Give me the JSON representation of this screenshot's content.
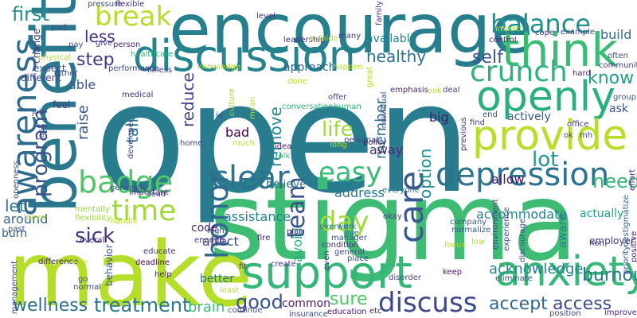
{
  "words": [
    {
      "text": "open",
      "color": "#297b8e",
      "vertical": false
    },
    {
      "text": "stigma",
      "color": "#3fbc73",
      "vertical": false
    },
    {
      "text": "make",
      "color": "#b5de2b",
      "vertical": false
    },
    {
      "text": "encourage",
      "color": "#277f8e",
      "vertical": false
    },
    {
      "text": "benefit",
      "color": "#2a788e",
      "vertical": true
    },
    {
      "text": "discussion",
      "color": "#25838e",
      "vertical": false
    },
    {
      "text": "think",
      "color": "#3bbb75",
      "vertical": false
    },
    {
      "text": "openly",
      "color": "#2ab07f",
      "vertical": false
    },
    {
      "text": "provide",
      "color": "#b8de29",
      "vertical": false
    },
    {
      "text": "support",
      "color": "#35b779",
      "vertical": false
    },
    {
      "text": "anxiety",
      "color": "#37b878",
      "vertical": false
    },
    {
      "text": "depression",
      "color": "#2c728e",
      "vertical": false
    },
    {
      "text": "clear",
      "color": "#2c718e",
      "vertical": false
    },
    {
      "text": "awareness",
      "color": "#2f6b8e",
      "vertical": true
    },
    {
      "text": "care",
      "color": "#38598c",
      "vertical": true
    },
    {
      "text": "honor",
      "color": "#31688e",
      "vertical": true
    },
    {
      "text": "badge",
      "color": "#52c569",
      "vertical": false
    },
    {
      "text": "crunch",
      "color": "#2db27d",
      "vertical": false
    },
    {
      "text": "balance",
      "color": "#20928c",
      "vertical": false
    },
    {
      "text": "break",
      "color": "#b5de2b",
      "vertical": false
    },
    {
      "text": "discuss",
      "color": "#3e4a89",
      "vertical": false
    },
    {
      "text": "easy",
      "color": "#3bbb75",
      "vertical": false
    },
    {
      "text": "time",
      "color": "#9fda3a",
      "vertical": false
    },
    {
      "text": "day",
      "color": "#a2da37",
      "vertical": false
    },
    {
      "text": "team",
      "color": "#3a548c",
      "vertical": true
    },
    {
      "text": "first",
      "color": "#21908d",
      "vertical": false
    },
    {
      "text": "program",
      "color": "#3b528b",
      "vertical": true
    },
    {
      "text": "sick",
      "color": "#453882",
      "vertical": false
    },
    {
      "text": "treatment",
      "color": "#2a788e",
      "vertical": false
    },
    {
      "text": "wellness",
      "color": "#2e6f8e",
      "vertical": false
    },
    {
      "text": "good",
      "color": "#3b528b",
      "vertical": false
    },
    {
      "text": "sure",
      "color": "#52c569",
      "vertical": false
    },
    {
      "text": "accept",
      "color": "#31688e",
      "vertical": false
    },
    {
      "text": "access",
      "color": "#3e4c8a",
      "vertical": false
    },
    {
      "text": "burnout",
      "color": "#2a788e",
      "vertical": false
    },
    {
      "text": "acknowledge",
      "color": "#26828e",
      "vertical": false
    },
    {
      "text": "need",
      "color": "#37b878",
      "vertical": false
    },
    {
      "text": "know",
      "color": "#1f9f88",
      "vertical": false
    },
    {
      "text": "life",
      "color": "#a0da39",
      "vertical": false
    },
    {
      "text": "lot",
      "color": "#1f988b",
      "vertical": false
    },
    {
      "text": "self",
      "color": "#3b528b",
      "vertical": false
    },
    {
      "text": "healthy",
      "color": "#2c728e",
      "vertical": false
    },
    {
      "text": "step",
      "color": "#453882",
      "vertical": false
    },
    {
      "text": "less",
      "color": "#46327e",
      "vertical": false
    },
    {
      "text": "talk",
      "color": "#2c728e",
      "vertical": true
    },
    {
      "text": "reduce",
      "color": "#414487",
      "vertical": true
    },
    {
      "text": "remove",
      "color": "#24868e",
      "vertical": true
    },
    {
      "text": "option",
      "color": "#23898e",
      "vertical": true
    },
    {
      "text": "member",
      "color": "#2c728e",
      "vertical": true
    },
    {
      "text": "raise",
      "color": "#3b528b",
      "vertical": true
    },
    {
      "text": "let",
      "color": "#2e6e8e",
      "vertical": false
    },
    {
      "text": "brain",
      "color": "#38b977",
      "vertical": false
    },
    {
      "text": "assistance",
      "color": "#277f8e",
      "vertical": false
    },
    {
      "text": "accommodate",
      "color": "#25848e",
      "vertical": false
    },
    {
      "text": "provide",
      "color": "#b8de29",
      "vertical": false
    },
    {
      "text": "bad",
      "color": "#440154",
      "vertical": false
    },
    {
      "text": "believe",
      "color": "#2b758e",
      "vertical": false
    },
    {
      "text": "affect",
      "color": "#404688",
      "vertical": false
    },
    {
      "text": "address",
      "color": "#2a788e",
      "vertical": false
    },
    {
      "text": "allow",
      "color": "#471063",
      "vertical": false
    },
    {
      "text": "actually",
      "color": "#1fa088",
      "vertical": false
    },
    {
      "text": "away",
      "color": "#472d7b",
      "vertical": false
    },
    {
      "text": "around",
      "color": "#33638d",
      "vertical": false
    },
    {
      "text": "burn",
      "color": "#35608d",
      "vertical": false
    },
    {
      "text": "code",
      "color": "#482878",
      "vertical": false
    },
    {
      "text": "better",
      "color": "#2e6e8e",
      "vertical": false
    },
    {
      "text": "common",
      "color": "#482071",
      "vertical": false
    },
    {
      "text": "available",
      "color": "#25858e",
      "vertical": false
    },
    {
      "text": "approach",
      "color": "#31688e",
      "vertical": false
    },
    {
      "text": "big",
      "color": "#481d6f",
      "vertical": false
    },
    {
      "text": "ask",
      "color": "#3b528b",
      "vertical": false
    },
    {
      "text": "actively",
      "color": "#35608d",
      "vertical": false
    },
    {
      "text": "build",
      "color": "#31688e",
      "vertical": false
    },
    {
      "text": "able",
      "color": "#38598c",
      "vertical": false
    },
    {
      "text": "avoid",
      "color": "#2ab07f",
      "vertical": true
    },
    {
      "text": "aware",
      "color": "#2a788e",
      "vertical": true
    },
    {
      "text": "employer",
      "color": "#46337f",
      "vertical": false
    },
    {
      "text": "change",
      "color": "#443b84",
      "vertical": true
    },
    {
      "text": "feel",
      "color": "#443b84",
      "vertical": false
    },
    {
      "text": "expect",
      "color": "#3b528b",
      "vertical": false
    },
    {
      "text": "different",
      "color": "#3e4989",
      "vertical": false
    },
    {
      "text": "sure",
      "color": "#52c569",
      "vertical": false
    },
    {
      "text": "fire",
      "color": "#482475",
      "vertical": false
    },
    {
      "text": "enough",
      "color": "#46337f",
      "vertical": false
    },
    {
      "text": "overall",
      "color": "#482878",
      "vertical": false
    },
    {
      "text": "create",
      "color": "#443983",
      "vertical": false
    },
    {
      "text": "condition",
      "color": "#472d7b",
      "vertical": false
    },
    {
      "text": "education",
      "color": "#481a6c",
      "vertical": false
    },
    {
      "text": "continue",
      "color": "#3e4a89",
      "vertical": false
    },
    {
      "text": "disorder",
      "color": "#3f4788",
      "vertical": false
    },
    {
      "text": "difference",
      "color": "#482878",
      "vertical": false
    },
    {
      "text": "deadline",
      "color": "#440154",
      "vertical": false
    },
    {
      "text": "behavior",
      "color": "#3a548c",
      "vertical": true
    },
    {
      "text": "educate",
      "color": "#472f7d",
      "vertical": false
    },
    {
      "text": "environment",
      "color": "#433e85",
      "vertical": true
    },
    {
      "text": "experience",
      "color": "#3e4a89",
      "vertical": true
    },
    {
      "text": "discourage",
      "color": "#3d4d8a",
      "vertical": true
    },
    {
      "text": "destigmatize",
      "color": "#31688e",
      "vertical": true
    },
    {
      "text": "cope",
      "color": "#443983",
      "vertical": false
    },
    {
      "text": "example",
      "color": "#3f4889",
      "vertical": false
    },
    {
      "text": "healthcare",
      "color": "#2fb47c",
      "vertical": false
    },
    {
      "text": "leadership",
      "color": "#46327e",
      "vertical": false
    },
    {
      "text": "control",
      "color": "#482173",
      "vertical": false
    },
    {
      "text": "conversation",
      "color": "#2fb47c",
      "vertical": false
    },
    {
      "text": "emphasis",
      "color": "#482576",
      "vertical": false
    },
    {
      "text": "deal",
      "color": "#3f4889",
      "vertical": false
    },
    {
      "text": "community",
      "color": "#433d84",
      "vertical": false
    },
    {
      "text": "end",
      "color": "#3b528b",
      "vertical": false
    },
    {
      "text": "find",
      "color": "#453781",
      "vertical": false
    },
    {
      "text": "everyone",
      "color": "#277f8e",
      "vertical": false
    },
    {
      "text": "okay",
      "color": "#414287",
      "vertical": false
    },
    {
      "text": "company",
      "color": "#3a548c",
      "vertical": false
    },
    {
      "text": "normalize",
      "color": "#3a548c",
      "vertical": false
    },
    {
      "text": "manager",
      "color": "#3b528b",
      "vertical": false
    },
    {
      "text": "focus",
      "color": "#bddf26",
      "vertical": false
    },
    {
      "text": "even",
      "color": "#443b84",
      "vertical": true
    },
    {
      "text": "keep",
      "color": "#481467",
      "vertical": false
    },
    {
      "text": "eliminate",
      "color": "#3b518b",
      "vertical": false
    },
    {
      "text": "improve",
      "color": "#482878",
      "vertical": false
    },
    {
      "text": "help",
      "color": "#482677",
      "vertical": false
    },
    {
      "text": "normal",
      "color": "#3e4c8a",
      "vertical": false
    },
    {
      "text": "go",
      "color": "#3b528b",
      "vertical": false
    },
    {
      "text": "lead",
      "color": "#45337f",
      "vertical": false
    },
    {
      "text": "handle",
      "color": "#b8de29",
      "vertical": false
    },
    {
      "text": "mentally",
      "color": "#95d840",
      "vertical": false
    },
    {
      "text": "flexibility",
      "color": "#a5db36",
      "vertical": false
    },
    {
      "text": "leave",
      "color": "#b5de2b",
      "vertical": false
    },
    {
      "text": "generally",
      "color": "#3e4a89",
      "vertical": false
    },
    {
      "text": "important",
      "color": "#453882",
      "vertical": false
    },
    {
      "text": "developer",
      "color": "#3e4989",
      "vertical": true
    },
    {
      "text": "medical",
      "color": "#46307e",
      "vertical": false
    },
    {
      "text": "culture",
      "color": "#a2da37",
      "vertical": true
    },
    {
      "text": "human",
      "color": "#2fb47c",
      "vertical": false
    },
    {
      "text": "offer",
      "color": "#433e85",
      "vertical": false
    },
    {
      "text": "individual",
      "color": "#3e4989",
      "vertical": true
    },
    {
      "text": "personal",
      "color": "#404688",
      "vertical": false
    },
    {
      "text": "policy",
      "color": "#471365",
      "vertical": false
    },
    {
      "text": "idea",
      "color": "#481668",
      "vertical": false
    },
    {
      "text": "folk",
      "color": "#3bbb75",
      "vertical": false
    },
    {
      "text": "much",
      "color": "#b5de2b",
      "vertical": false
    },
    {
      "text": "home",
      "color": "#3e4989",
      "vertical": false
    },
    {
      "text": "high",
      "color": "#3b528b",
      "vertical": false
    },
    {
      "text": "plan",
      "color": "#472d7b",
      "vertical": false
    },
    {
      "text": "live",
      "color": "#2e6e8e",
      "vertical": false
    },
    {
      "text": "overwork",
      "color": "#2e6e8e",
      "vertical": false
    },
    {
      "text": "general",
      "color": "#3e4c8a",
      "vertical": false
    },
    {
      "text": "place",
      "color": "#3b528b",
      "vertical": false
    },
    {
      "text": "etc",
      "color": "#481b6d",
      "vertical": false
    },
    {
      "text": "insurance",
      "color": "#3e4989",
      "vertical": false
    },
    {
      "text": "position",
      "color": "#3e4a89",
      "vertical": false
    },
    {
      "text": "priority",
      "color": "#3b528b",
      "vertical": true
    },
    {
      "text": "positive",
      "color": "#482071",
      "vertical": true
    },
    {
      "text": "non",
      "color": "#453781",
      "vertical": false
    },
    {
      "text": "office",
      "color": "#453781",
      "vertical": false
    },
    {
      "text": "group",
      "color": "#38598c",
      "vertical": false
    },
    {
      "text": "hard",
      "color": "#481f70",
      "vertical": false
    },
    {
      "text": "often",
      "color": "#3e4c8a",
      "vertical": false
    },
    {
      "text": "impact",
      "color": "#b8de29",
      "vertical": false
    },
    {
      "text": "many",
      "color": "#443983",
      "vertical": false
    },
    {
      "text": "outside",
      "color": "#b5de2b",
      "vertical": false
    },
    {
      "text": "level",
      "color": "#472d7b",
      "vertical": false
    },
    {
      "text": "family",
      "color": "#46327e",
      "vertical": true
    },
    {
      "text": "great",
      "color": "#b5de2b",
      "vertical": true
    },
    {
      "text": "happen",
      "color": "#b8de29",
      "vertical": false
    },
    {
      "text": "knowledge",
      "color": "#b5de2b",
      "vertical": false
    },
    {
      "text": "illness",
      "color": "#453882",
      "vertical": false
    },
    {
      "text": "performance",
      "color": "#3e4989",
      "vertical": false
    },
    {
      "text": "physical",
      "color": "#b5de2b",
      "vertical": false
    },
    {
      "text": "part",
      "color": "#3f4788",
      "vertical": false
    },
    {
      "text": "pay",
      "color": "#3b528b",
      "vertical": false
    },
    {
      "text": "give",
      "color": "#453882",
      "vertical": false
    },
    {
      "text": "person",
      "color": "#482878",
      "vertical": false
    },
    {
      "text": "pressure",
      "color": "#3b528b",
      "vertical": false
    },
    {
      "text": "flexible",
      "color": "#46327e",
      "vertical": false
    },
    {
      "text": "either",
      "color": "#3e4989",
      "vertical": false
    },
    {
      "text": "look",
      "color": "#b5de2b",
      "vertical": false
    },
    {
      "text": "previous",
      "color": "#46327e",
      "vertical": true
    },
    {
      "text": "ok",
      "color": "#3e4989",
      "vertical": false
    },
    {
      "text": "ie",
      "color": "#3b528b",
      "vertical": false
    },
    {
      "text": "done",
      "color": "#b5de2b",
      "vertical": false
    },
    {
      "text": "mean",
      "color": "#b5de2b",
      "vertical": true
    },
    {
      "text": "lack",
      "color": "#3e4989",
      "vertical": true
    },
    {
      "text": "job",
      "color": "#3e4c8a",
      "vertical": false
    },
    {
      "text": "openness",
      "color": "#3e4989",
      "vertical": true
    },
    {
      "text": "past",
      "color": "#3e4a89",
      "vertical": false
    },
    {
      "text": "management",
      "color": "#3e4a89",
      "vertical": true
    },
    {
      "text": "fit",
      "color": "#482878",
      "vertical": false
    },
    {
      "text": "line",
      "color": "#b5de2b",
      "vertical": false
    },
    {
      "text": "low",
      "color": "#b5de2b",
      "vertical": false
    },
    {
      "text": "mh",
      "color": "#3e4989",
      "vertical": false
    },
    {
      "text": "effort",
      "color": "#453882",
      "vertical": true
    },
    {
      "text": "long",
      "color": "#b5de2b",
      "vertical": false
    },
    {
      "text": "least",
      "color": "#b5de2b",
      "vertical": false
    }
  ]
}
